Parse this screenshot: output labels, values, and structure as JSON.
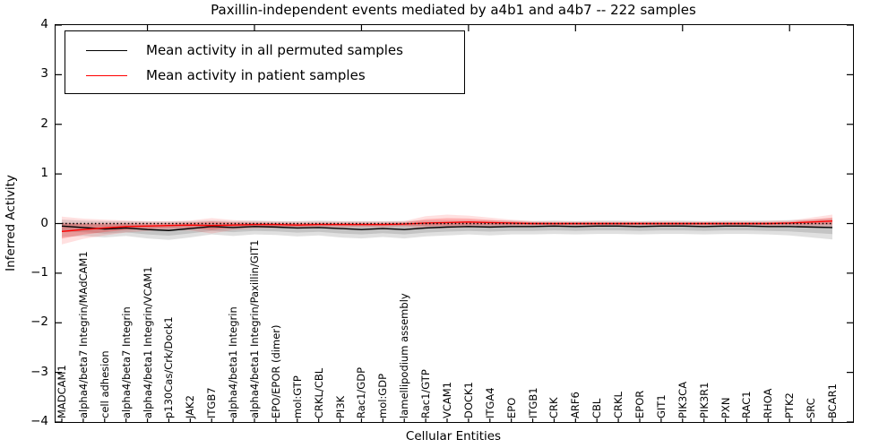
{
  "title": "Paxillin-independent events mediated by a4b1 and a4b7 -- 222 samples",
  "axes": {
    "xlabel": "Cellular Entities",
    "ylabel": "Inferred Activity",
    "yticks": [
      "4",
      "3",
      "2",
      "1",
      "0",
      "−1",
      "−2",
      "−3",
      "−4"
    ],
    "ylim": [
      -4,
      4
    ]
  },
  "legend": {
    "items": [
      {
        "label": "Mean activity in all permuted samples",
        "color": "#000000"
      },
      {
        "label": "Mean activity in patient samples",
        "color": "#ff0000"
      }
    ]
  },
  "colors": {
    "permuted_line": "#000000",
    "patient_line": "#ff0000",
    "permuted_band": "#000000",
    "patient_band": "#ff0000",
    "zero_line": "#000000",
    "background": "#ffffff"
  },
  "chart_data": {
    "type": "line",
    "title": "Paxillin-independent events mediated by a4b1 and a4b7 -- 222 samples",
    "xlabel": "Cellular Entities",
    "ylabel": "Inferred Activity",
    "ylim": [
      -4,
      4
    ],
    "grid": false,
    "legend_position": "upper left",
    "zero_reference_line": 0,
    "categories": [
      "MADCAM1",
      "alpha4/beta7 Integrin/MAdCAM1",
      "cell adhesion",
      "alpha4/beta7 Integrin",
      "alpha4/beta1 Integrin/VCAM1",
      "p130Cas/Crk/Dock1",
      "JAK2",
      "ITGB7",
      "alpha4/beta1 Integrin",
      "alpha4/beta1 Integrin/Paxillin/GIT1",
      "EPO/EPOR (dimer)",
      "mol:GTP",
      "CRKL/CBL",
      "PI3K",
      "Rac1/GDP",
      "mol:GDP",
      "lamellipodium assembly",
      "Rac1/GTP",
      "VCAM1",
      "DOCK1",
      "ITGA4",
      "EPO",
      "ITGB1",
      "CRK",
      "ARF6",
      "CBL",
      "CRKL",
      "EPOR",
      "GIT1",
      "PIK3CA",
      "PIK3R1",
      "PXN",
      "RAC1",
      "RHOA",
      "PTK2",
      "SRC",
      "BCAR1"
    ],
    "series": [
      {
        "name": "Mean activity in all permuted samples",
        "color": "#000000",
        "style": "solid",
        "values": [
          -0.05,
          -0.08,
          -0.11,
          -0.09,
          -0.12,
          -0.14,
          -0.1,
          -0.06,
          -0.08,
          -0.06,
          -0.07,
          -0.09,
          -0.08,
          -0.1,
          -0.12,
          -0.1,
          -0.12,
          -0.09,
          -0.07,
          -0.06,
          -0.07,
          -0.06,
          -0.06,
          -0.05,
          -0.06,
          -0.05,
          -0.05,
          -0.06,
          -0.05,
          -0.05,
          -0.06,
          -0.05,
          -0.05,
          -0.06,
          -0.06,
          -0.07,
          -0.08
        ]
      },
      {
        "name": "Mean activity in patient samples",
        "color": "#ff0000",
        "style": "solid",
        "values": [
          -0.16,
          -0.12,
          -0.09,
          -0.06,
          -0.05,
          -0.04,
          -0.03,
          -0.04,
          -0.03,
          -0.02,
          -0.02,
          -0.03,
          -0.02,
          -0.02,
          -0.02,
          -0.02,
          -0.01,
          0.01,
          0.02,
          0.03,
          0.02,
          0.01,
          0.0,
          0.0,
          0.0,
          0.0,
          0.0,
          0.0,
          0.0,
          0.0,
          0.0,
          0.0,
          0.0,
          0.0,
          0.01,
          0.03,
          0.05
        ]
      }
    ],
    "bands": [
      {
        "name": "permuted-samples-range",
        "color": "#000000",
        "upper": [
          0.08,
          0.06,
          0.05,
          0.05,
          0.04,
          0.04,
          0.05,
          0.06,
          0.05,
          0.06,
          0.05,
          0.05,
          0.06,
          0.05,
          0.05,
          0.05,
          0.05,
          0.06,
          0.06,
          0.06,
          0.06,
          0.06,
          0.05,
          0.06,
          0.05,
          0.06,
          0.06,
          0.05,
          0.06,
          0.06,
          0.05,
          0.06,
          0.06,
          0.06,
          0.07,
          0.08,
          0.1
        ],
        "lower": [
          -0.27,
          -0.25,
          -0.28,
          -0.25,
          -0.3,
          -0.33,
          -0.28,
          -0.22,
          -0.25,
          -0.22,
          -0.23,
          -0.26,
          -0.24,
          -0.28,
          -0.3,
          -0.27,
          -0.3,
          -0.26,
          -0.24,
          -0.22,
          -0.24,
          -0.22,
          -0.22,
          -0.21,
          -0.22,
          -0.21,
          -0.21,
          -0.22,
          -0.21,
          -0.21,
          -0.22,
          -0.21,
          -0.21,
          -0.22,
          -0.24,
          -0.28,
          -0.32
        ]
      },
      {
        "name": "patient-samples-range",
        "color": "#ff0000",
        "upper": [
          0.14,
          0.1,
          0.08,
          0.06,
          0.05,
          0.05,
          0.06,
          0.11,
          0.07,
          0.05,
          0.04,
          0.04,
          0.04,
          0.04,
          0.04,
          0.04,
          0.05,
          0.15,
          0.18,
          0.16,
          0.12,
          0.08,
          0.05,
          0.04,
          0.04,
          0.04,
          0.04,
          0.04,
          0.04,
          0.04,
          0.04,
          0.04,
          0.04,
          0.05,
          0.06,
          0.12,
          0.18
        ],
        "lower": [
          -0.42,
          -0.31,
          -0.24,
          -0.18,
          -0.15,
          -0.13,
          -0.14,
          -0.2,
          -0.13,
          -0.1,
          -0.09,
          -0.09,
          -0.08,
          -0.08,
          -0.08,
          -0.08,
          -0.07,
          -0.1,
          -0.09,
          -0.08,
          -0.07,
          -0.06,
          -0.05,
          -0.05,
          -0.05,
          -0.05,
          -0.05,
          -0.05,
          -0.05,
          -0.05,
          -0.05,
          -0.05,
          -0.05,
          -0.05,
          -0.05,
          -0.06,
          -0.07
        ]
      }
    ]
  }
}
